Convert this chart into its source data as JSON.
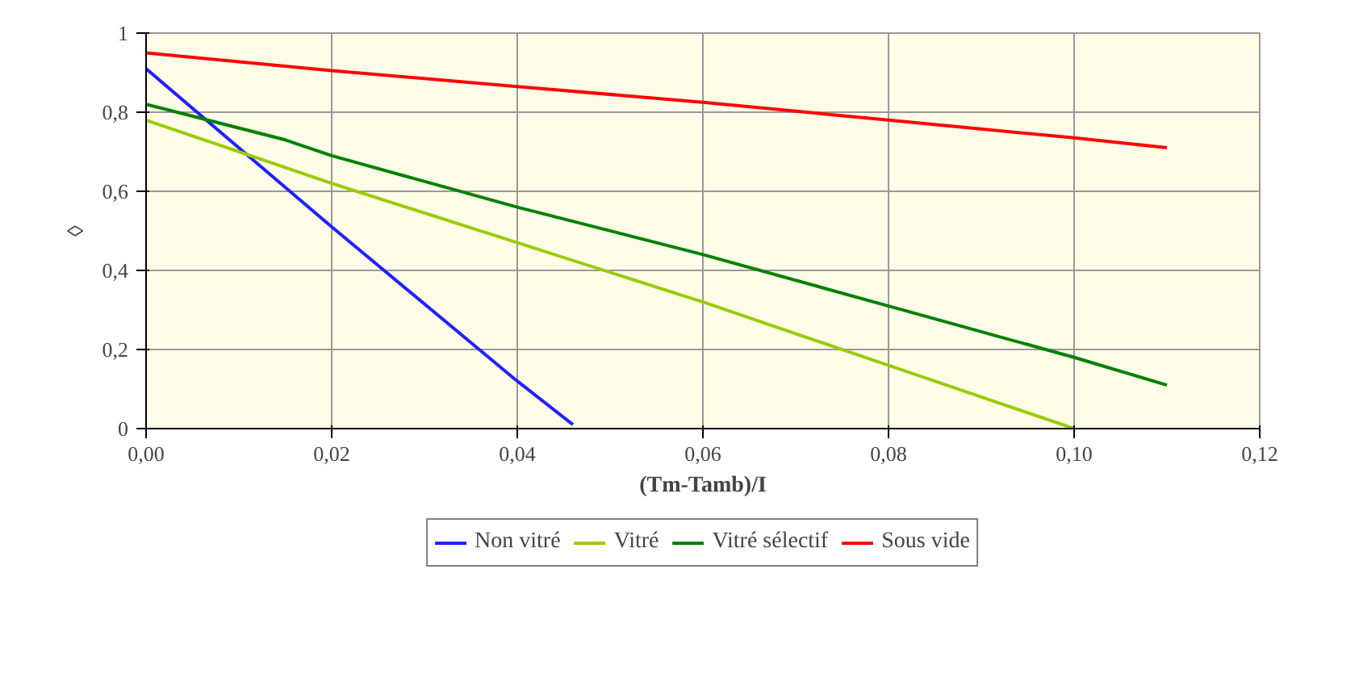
{
  "chart_data": {
    "type": "line",
    "xlabel": "(Tm-Tamb)/I",
    "ylabel": "◊",
    "xlim": [
      0,
      0.12
    ],
    "xticks": [
      {
        "value": 0,
        "label": "0,00"
      },
      {
        "value": 0.02,
        "label": "0,02"
      },
      {
        "value": 0.04,
        "label": "0,04"
      },
      {
        "value": 0.06,
        "label": "0,06"
      },
      {
        "value": 0.08,
        "label": "0,08"
      },
      {
        "value": 0.1,
        "label": "0,10"
      },
      {
        "value": 0.12,
        "label": "0,12"
      }
    ],
    "ylim": [
      0,
      1
    ],
    "yticks": [
      0,
      {
        "value": 0.2,
        "label": "0,2"
      },
      {
        "value": 0.4,
        "label": "0,4"
      },
      {
        "value": 0.6,
        "label": "0,6"
      },
      {
        "value": 0.8,
        "label": "0,8"
      },
      1
    ],
    "grid": true,
    "legend": "bottom",
    "marker": "none",
    "line_style": "solid",
    "series": [
      {
        "name": "Non vitré",
        "color": "#2020ff",
        "x": [
          0,
          0.02,
          0.04,
          0.046
        ],
        "values": [
          0.91,
          0.51,
          0.12,
          0.01
        ]
      },
      {
        "name": "Vitré",
        "color": "#99cc00",
        "x": [
          0,
          0.02,
          0.04,
          0.06,
          0.08,
          0.1
        ],
        "values": [
          0.78,
          0.62,
          0.47,
          0.32,
          0.16,
          0.0
        ]
      },
      {
        "name": "Vitré sélectif",
        "color": "#008000",
        "x": [
          0,
          0.015,
          0.02,
          0.04,
          0.06,
          0.08,
          0.1,
          0.11
        ],
        "values": [
          0.82,
          0.73,
          0.69,
          0.56,
          0.44,
          0.31,
          0.18,
          0.11
        ]
      },
      {
        "name": "Sous vide",
        "color": "#ff0000",
        "x": [
          0,
          0.02,
          0.04,
          0.06,
          0.08,
          0.1,
          0.11
        ],
        "values": [
          0.95,
          0.905,
          0.865,
          0.825,
          0.78,
          0.735,
          0.71
        ]
      }
    ]
  }
}
